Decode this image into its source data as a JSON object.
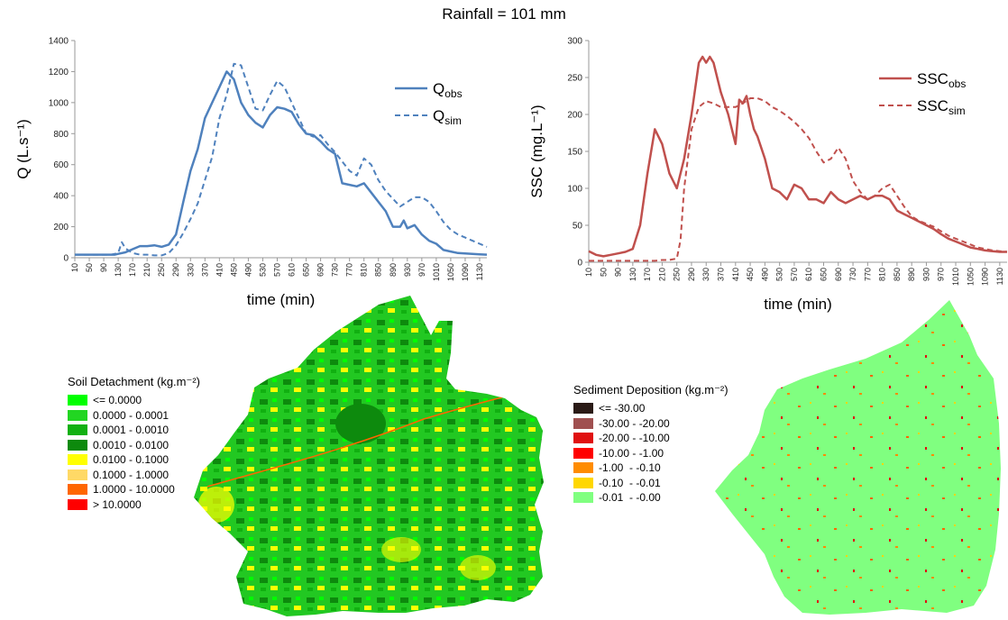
{
  "figure_title": "Rainfall = 101 mm",
  "chart_data": [
    {
      "type": "line",
      "xlabel": "time (min)",
      "ylabel": "Q (L.s⁻¹)",
      "ylim": [
        0,
        1400
      ],
      "yticks": [
        0,
        200,
        400,
        600,
        800,
        1000,
        1200,
        1400
      ],
      "xticks": [
        "10",
        "50",
        "90",
        "130",
        "170",
        "210",
        "250",
        "290",
        "330",
        "370",
        "410",
        "450",
        "490",
        "530",
        "570",
        "610",
        "650",
        "690",
        "730",
        "770",
        "810",
        "850",
        "890",
        "930",
        "970",
        "1010",
        "1050",
        "1090",
        "1130"
      ],
      "xlim": [
        10,
        1150
      ],
      "legend": "top-right",
      "series": [
        {
          "name": "Qobs",
          "style": "solid",
          "color": "#4f81bd",
          "x": [
            10,
            120,
            130,
            150,
            170,
            190,
            210,
            230,
            250,
            270,
            290,
            310,
            330,
            350,
            370,
            390,
            410,
            430,
            450,
            470,
            490,
            510,
            530,
            550,
            570,
            590,
            610,
            630,
            650,
            670,
            690,
            710,
            730,
            750,
            770,
            790,
            810,
            830,
            850,
            870,
            890,
            910,
            920,
            930,
            950,
            970,
            990,
            1010,
            1030,
            1050,
            1070,
            1090,
            1110,
            1130,
            1150
          ],
          "y": [
            20,
            20,
            25,
            35,
            55,
            75,
            75,
            80,
            70,
            85,
            150,
            360,
            560,
            700,
            900,
            1000,
            1100,
            1200,
            1150,
            1000,
            920,
            870,
            840,
            920,
            970,
            960,
            940,
            860,
            800,
            790,
            750,
            700,
            670,
            480,
            470,
            460,
            480,
            420,
            360,
            300,
            200,
            200,
            240,
            190,
            210,
            150,
            110,
            90,
            50,
            40,
            30,
            28,
            25,
            22,
            20
          ]
        },
        {
          "name": "Qsim",
          "style": "dashed",
          "color": "#4f81bd",
          "x": [
            10,
            110,
            130,
            140,
            150,
            170,
            190,
            210,
            230,
            250,
            270,
            290,
            310,
            330,
            350,
            370,
            390,
            410,
            430,
            450,
            470,
            490,
            510,
            530,
            550,
            570,
            590,
            610,
            630,
            650,
            670,
            690,
            710,
            730,
            750,
            770,
            790,
            810,
            830,
            850,
            870,
            890,
            910,
            930,
            950,
            970,
            990,
            1010,
            1030,
            1050,
            1070,
            1090,
            1110,
            1130,
            1150
          ],
          "y": [
            20,
            20,
            30,
            100,
            60,
            30,
            20,
            20,
            15,
            15,
            30,
            80,
            160,
            250,
            350,
            500,
            650,
            900,
            1050,
            1250,
            1240,
            1100,
            960,
            950,
            1050,
            1140,
            1100,
            1000,
            900,
            800,
            780,
            790,
            730,
            680,
            620,
            560,
            530,
            640,
            600,
            500,
            430,
            380,
            330,
            360,
            390,
            390,
            360,
            300,
            230,
            180,
            150,
            130,
            110,
            90,
            70
          ]
        }
      ]
    },
    {
      "type": "line",
      "xlabel": "time (min)",
      "ylabel": "SSC (mg.L⁻¹)",
      "ylim": [
        0,
        300
      ],
      "yticks": [
        0,
        50,
        100,
        150,
        200,
        250,
        300
      ],
      "xticks": [
        "10",
        "50",
        "90",
        "130",
        "170",
        "210",
        "250",
        "290",
        "330",
        "370",
        "410",
        "450",
        "490",
        "530",
        "570",
        "610",
        "650",
        "690",
        "730",
        "770",
        "810",
        "850",
        "890",
        "930",
        "970",
        "1010",
        "1050",
        "1090",
        "1130"
      ],
      "xlim": [
        10,
        1150
      ],
      "legend": "top-right",
      "series": [
        {
          "name": "SSCobs",
          "style": "solid",
          "color": "#c0504d",
          "x": [
            10,
            30,
            50,
            70,
            90,
            110,
            130,
            150,
            170,
            190,
            210,
            230,
            250,
            270,
            290,
            310,
            320,
            330,
            340,
            350,
            370,
            390,
            410,
            420,
            430,
            440,
            450,
            460,
            470,
            490,
            510,
            530,
            550,
            570,
            590,
            610,
            630,
            650,
            670,
            690,
            710,
            730,
            750,
            770,
            790,
            810,
            830,
            850,
            870,
            890,
            910,
            930,
            950,
            970,
            990,
            1010,
            1030,
            1050,
            1070,
            1090,
            1110,
            1130,
            1150
          ],
          "y": [
            15,
            10,
            8,
            10,
            12,
            14,
            18,
            50,
            120,
            180,
            160,
            120,
            100,
            140,
            200,
            270,
            278,
            270,
            278,
            270,
            230,
            200,
            160,
            220,
            215,
            225,
            200,
            180,
            170,
            140,
            100,
            95,
            85,
            105,
            100,
            85,
            85,
            80,
            95,
            85,
            80,
            85,
            90,
            85,
            90,
            90,
            85,
            70,
            65,
            60,
            55,
            50,
            45,
            38,
            32,
            28,
            24,
            20,
            18,
            16,
            15,
            14,
            14
          ]
        },
        {
          "name": "SSCsim",
          "style": "dashed",
          "color": "#c0504d",
          "x": [
            10,
            150,
            170,
            190,
            210,
            230,
            250,
            260,
            270,
            290,
            310,
            330,
            350,
            370,
            390,
            410,
            430,
            450,
            470,
            490,
            510,
            530,
            550,
            570,
            590,
            610,
            630,
            650,
            670,
            690,
            710,
            730,
            750,
            770,
            790,
            810,
            830,
            850,
            870,
            890,
            910,
            930,
            950,
            970,
            990,
            1010,
            1030,
            1050,
            1070,
            1090,
            1110,
            1130,
            1150
          ],
          "y": [
            2,
            2,
            2,
            2,
            3,
            3,
            5,
            30,
            100,
            180,
            210,
            218,
            215,
            210,
            210,
            210,
            215,
            222,
            222,
            218,
            210,
            205,
            198,
            190,
            180,
            168,
            150,
            135,
            140,
            155,
            140,
            110,
            95,
            85,
            90,
            100,
            105,
            90,
            75,
            62,
            56,
            52,
            48,
            42,
            36,
            32,
            28,
            24,
            20,
            18,
            16,
            15,
            14
          ]
        }
      ]
    }
  ],
  "legend_left": {
    "title": "Soil Detachment (kg.m⁻²)",
    "items": [
      {
        "label": "<= 0.0000",
        "color": "#00ff00"
      },
      {
        "label": "0.0000 - 0.0001",
        "color": "#22d622"
      },
      {
        "label": "0.0001 - 0.0010",
        "color": "#11b011"
      },
      {
        "label": "0.0010 - 0.0100",
        "color": "#0d8a0d"
      },
      {
        "label": "0.0100 - 0.1000",
        "color": "#ffff00"
      },
      {
        "label": "0.1000 - 1.0000",
        "color": "#ffd966"
      },
      {
        "label": "1.0000 - 10.0000",
        "color": "#ff6600"
      },
      {
        "label": "> 10.0000",
        "color": "#ff0000"
      }
    ]
  },
  "legend_right": {
    "title": "Sediment Deposition (kg.m⁻²)",
    "items": [
      {
        "label": "<= -30.00",
        "color": "#2a1a16"
      },
      {
        "label": "-30.00 - -20.00",
        "color": "#a05050"
      },
      {
        "label": "-20.00 - -10.00",
        "color": "#e01010"
      },
      {
        "label": "-10.00 - -1.00",
        "color": "#ff0000"
      },
      {
        "label": "-1.00  - -0.10",
        "color": "#ff8c00"
      },
      {
        "label": "-0.10  - -0.01",
        "color": "#ffd700"
      },
      {
        "label": "-0.01  - -0.00",
        "color": "#80ff80"
      }
    ]
  }
}
